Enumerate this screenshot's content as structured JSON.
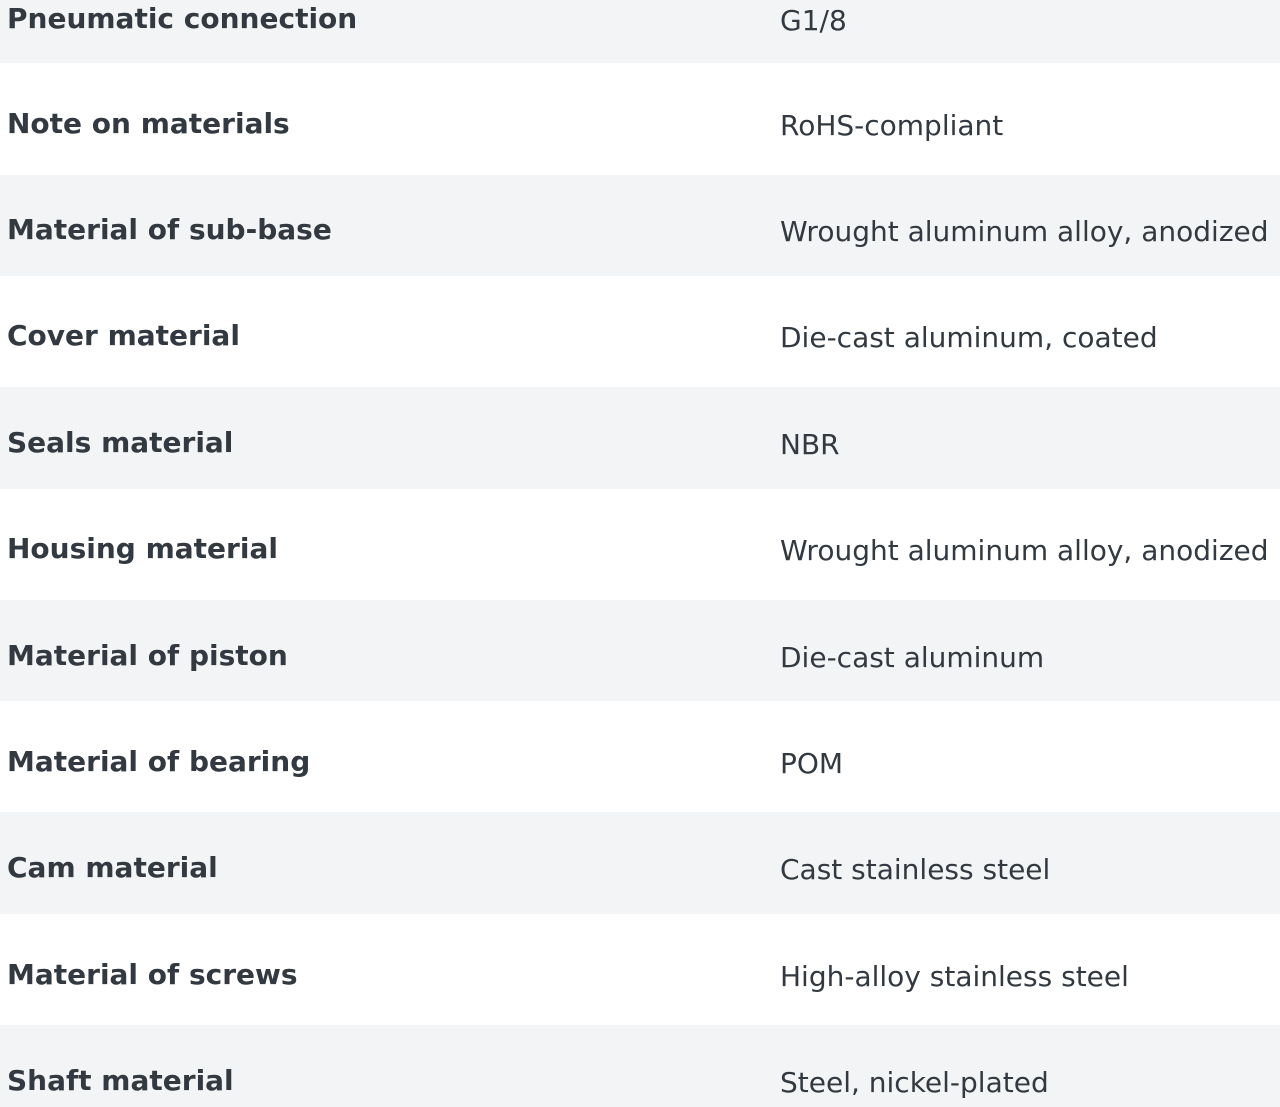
{
  "specs": [
    {
      "label": "Pneumatic connection",
      "value": "G1/8"
    },
    {
      "label": "Note on materials",
      "value": "RoHS-compliant"
    },
    {
      "label": "Material of sub-base",
      "value": "Wrought aluminum alloy, anodized"
    },
    {
      "label": "Cover material",
      "value": "Die-cast aluminum, coated"
    },
    {
      "label": "Seals material",
      "value": "NBR"
    },
    {
      "label": "Housing material",
      "value": "Wrought aluminum alloy, anodized"
    },
    {
      "label": "Material of piston",
      "value": "Die-cast aluminum"
    },
    {
      "label": "Material of bearing",
      "value": "POM"
    },
    {
      "label": "Cam material",
      "value": "Cast stainless steel"
    },
    {
      "label": "Material of screws",
      "value": "High-alloy stainless steel"
    },
    {
      "label": "Shaft material",
      "value": "Steel, nickel-plated"
    }
  ]
}
